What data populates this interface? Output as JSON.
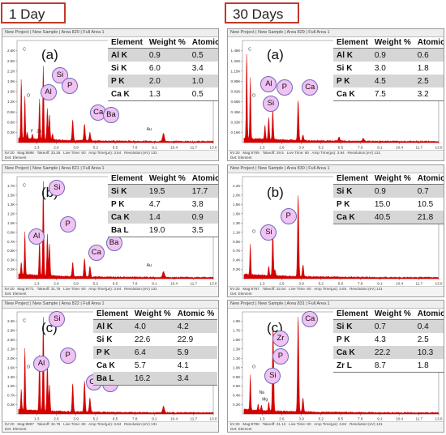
{
  "columns": [
    {
      "title": "1 Day"
    },
    {
      "title": "30 Days"
    }
  ],
  "chart_data": [
    {
      "type": "bar",
      "column": "1 Day",
      "panel_letter": "(a)",
      "header": "New Project | New Sample | Area 820 | Full Area 1",
      "footer": [
        "kV:20   Mag:5898   Takeoff: 33.26   Live Time: 60   Amp Time(µs): 3.84   Resolution:(eV) 131",
        "Det: Element"
      ],
      "yticks": [
        "2.8K",
        "2.5K",
        "2.2K",
        "1.9K",
        "1.6K",
        "1.2K",
        "0.9K",
        "0.6K",
        "0.3K"
      ],
      "xticks": [
        "1.3",
        "2.6",
        "3.9",
        "5.2",
        "6.5",
        "7.8",
        "9.1",
        "10.4",
        "11.7",
        "13.0"
      ],
      "xlim": [
        0,
        13.0
      ],
      "ylim": [
        0,
        2.8
      ],
      "small_labels": [
        "C",
        "O",
        "F",
        "Zn",
        "Au"
      ],
      "peak_labels": [
        "Al",
        "Si",
        "P",
        "Ca",
        "Ba"
      ],
      "table": {
        "headers": [
          "Element",
          "Weight %",
          "Atomic %"
        ],
        "rows": [
          [
            "Al K",
            "0.9",
            "0.5"
          ],
          [
            "Si K",
            "6.0",
            "3.4"
          ],
          [
            "P K",
            "2.0",
            "1.0"
          ],
          [
            "Ca K",
            "1.3",
            "0.5"
          ]
        ]
      }
    },
    {
      "type": "bar",
      "column": "30 Days",
      "panel_letter": "(a)",
      "header": "New Project | New Sample | Area 829 | Full Area 1",
      "footer": [
        "kV:20   Mag:9789   Takeoff: 29.5   Live Time: 60   Amp Time(µs): 3.84   Resolution:(eV) 131",
        "Det: Element"
      ],
      "yticks": [
        "1.48K",
        "1.32K",
        "1.15K",
        "0.99K",
        "0.82K",
        "0.66K",
        "0.49K",
        "0.33K",
        "0.16K"
      ],
      "xticks": [
        "1.3",
        "2.6",
        "3.9",
        "5.2",
        "6.5",
        "7.8",
        "9.1",
        "10.4",
        "11.7",
        "13.0"
      ],
      "xlim": [
        0,
        13.0
      ],
      "ylim": [
        0,
        1.48
      ],
      "small_labels": [
        "C",
        "O"
      ],
      "peak_labels": [
        "Al",
        "Si",
        "P",
        "Ca"
      ],
      "table": {
        "headers": [
          "Element",
          "Weight %",
          "Atomic %"
        ],
        "rows": [
          [
            "Al K",
            "0.9",
            "0.6"
          ],
          [
            "Si K",
            "3.0",
            "1.8"
          ],
          [
            "P K",
            "4.5",
            "2.5"
          ],
          [
            "Ca K",
            "7.5",
            "3.2"
          ]
        ]
      }
    },
    {
      "type": "bar",
      "column": "1 Day",
      "panel_letter": "(b)",
      "header": "New Project | New Sample | Area 821 | Full Area 1",
      "footer": [
        "kV:20   Mag:9771   Takeoff: 31.78   Live Time: 60   Amp Time(µs): 3.84   Resolution:(eV) 131",
        "Det: Element"
      ],
      "yticks": [
        "1.7K",
        "1.5K",
        "1.3K",
        "1.2K",
        "1.0K",
        "0.8K",
        "0.7K",
        "0.5K",
        "0.3K",
        "0.2K"
      ],
      "xticks": [
        "1.3",
        "2.6",
        "3.9",
        "5.2",
        "6.5",
        "7.8",
        "9.1",
        "10.4",
        "11.7",
        "13.0"
      ],
      "xlim": [
        0,
        13.0
      ],
      "ylim": [
        0,
        1.7
      ],
      "small_labels": [
        "C",
        "Au"
      ],
      "peak_labels": [
        "Si",
        "Al",
        "P",
        "Ca",
        "Ba"
      ],
      "table": {
        "headers": [
          "Element",
          "Weight %",
          "Atomic %"
        ],
        "rows": [
          [
            "Si K",
            "19.5",
            "17.7"
          ],
          [
            "P K",
            "4.7",
            "3.8"
          ],
          [
            "Ca K",
            "1.4",
            "0.9"
          ],
          [
            "Ba L",
            "19.0",
            "3.5"
          ]
        ]
      }
    },
    {
      "type": "bar",
      "column": "30 Days",
      "panel_letter": "(b)",
      "header": "New Project | New Sample | Area 830 | Full Area 1",
      "footer": [
        "kV:20   Mag:9767   Takeoff: 32.54   Live Time: 60   Amp Time(µs): 3.84   Resolution:(eV) 131",
        "Det: Element"
      ],
      "yticks": [
        "2.2K",
        "2.0K",
        "1.8K",
        "1.6K",
        "1.3K",
        "1.1K",
        "0.9K",
        "0.7K",
        "0.4K",
        "0.2K"
      ],
      "xticks": [
        "1.3",
        "2.6",
        "3.9",
        "5.2",
        "6.5",
        "7.8",
        "9.1",
        "10.4",
        "11.7",
        "13.0"
      ],
      "xlim": [
        0,
        13.0
      ],
      "ylim": [
        0,
        2.2
      ],
      "small_labels": [
        "O"
      ],
      "peak_labels": [
        "Ca",
        "P",
        "Si"
      ],
      "table": {
        "headers": [
          "Element",
          "Weight %",
          "Atomic %"
        ],
        "rows": [
          [
            "Si K",
            "0.9",
            "0.7"
          ],
          [
            "P K",
            "15.0",
            "10.5"
          ],
          [
            "Ca K",
            "40.5",
            "21.8"
          ]
        ]
      }
    },
    {
      "type": "bar",
      "column": "1 Day",
      "panel_letter": "(c)",
      "header": "New Project | New Sample | Area 822 | Full Area 1",
      "footer": [
        "kV:20   Mag:9887   Takeoff: 32.76   Live Time: 60   Amp Time(µs): 3.84   Resolution:(eV) 131",
        "Det: Element"
      ],
      "yticks": [
        "3.3K",
        "2.9K",
        "2.6K",
        "2.3K",
        "2.0K",
        "1.6K",
        "1.3K",
        "1.0K",
        "0.7K",
        "0.3K"
      ],
      "xticks": [
        "1.3",
        "2.6",
        "3.9",
        "5.2",
        "6.5",
        "7.8",
        "9.1",
        "10.4",
        "11.7",
        "13.0"
      ],
      "xlim": [
        0,
        13.0
      ],
      "ylim": [
        0,
        3.3
      ],
      "small_labels": [
        "C",
        "O"
      ],
      "peak_labels": [
        "Si",
        "Al",
        "P",
        "Ca",
        "Ba"
      ],
      "table": {
        "headers": [
          "Element",
          "Weight %",
          "Atomic %"
        ],
        "rows": [
          [
            "Al K",
            "4.0",
            "4.2"
          ],
          [
            "Si K",
            "22.6",
            "22.9"
          ],
          [
            "P K",
            "6.4",
            "5.9"
          ],
          [
            "Ca K",
            "5.7",
            "4.1"
          ],
          [
            "Ba L",
            "16.2",
            "3.4"
          ]
        ]
      }
    },
    {
      "type": "bar",
      "column": "30 Days",
      "panel_letter": "(c)",
      "header": "New Project | New Sample | Area 831 | Full Area 1",
      "footer": [
        "kV:20   Mag:9788   Takeoff: 31.12   Live Time: 60   Amp Time(µs): 3.84   Resolution:(eV) 131",
        "Det: Element"
      ],
      "yticks": [
        "1.9K",
        "1.7K",
        "1.5K",
        "1.3K",
        "1.1K",
        "1.0K",
        "0.8K",
        "0.6K",
        "0.4K",
        "0.2K"
      ],
      "xticks": [
        "1.3",
        "2.6",
        "3.9",
        "5.2",
        "6.5",
        "7.8",
        "9.1",
        "10.4",
        "11.7",
        "13.0"
      ],
      "xlim": [
        0,
        13.0
      ],
      "ylim": [
        0,
        1.9
      ],
      "small_labels": [
        "O",
        "Na",
        "Mg"
      ],
      "peak_labels": [
        "Ca",
        "Zr",
        "P",
        "Si"
      ],
      "table": {
        "headers": [
          "Element",
          "Weight %",
          "Atomic %"
        ],
        "rows": [
          [
            "Si K",
            "0.7",
            "0.4"
          ],
          [
            "P K",
            "4.3",
            "2.5"
          ],
          [
            "Ca K",
            "22.2",
            "10.3"
          ],
          [
            "Zr L",
            "8.7",
            "1.8"
          ]
        ]
      }
    }
  ],
  "colors": {
    "spectrum": "#d40000",
    "bubble_fill": "#f2c2f3",
    "bubble_border": "#6b6bb8",
    "title_border": "#c0392b",
    "row_shade": "#d6d6d6"
  }
}
